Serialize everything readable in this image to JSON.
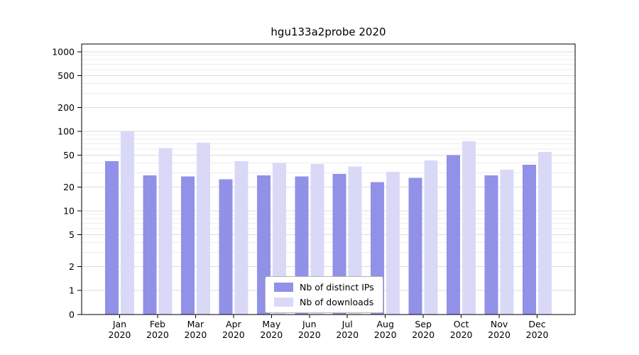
{
  "chart_data": {
    "type": "bar",
    "title": "hgu133a2probe 2020",
    "xlabel": "",
    "ylabel": "",
    "scale": "log-like with zero baseline",
    "grid": true,
    "legend_position": "bottom-center",
    "year_label": "2020",
    "categories": [
      "Jan",
      "Feb",
      "Mar",
      "Apr",
      "May",
      "Jun",
      "Jul",
      "Aug",
      "Sep",
      "Oct",
      "Nov",
      "Dec"
    ],
    "yticks": [
      0,
      1,
      2,
      5,
      10,
      20,
      50,
      100,
      200,
      500,
      1000
    ],
    "ylim": [
      0,
      1000
    ],
    "series": [
      {
        "name": "Nb of distinct IPs",
        "color": "#9191e8",
        "values": [
          42,
          28,
          27,
          25,
          28,
          27,
          29,
          23,
          26,
          50,
          28,
          38
        ]
      },
      {
        "name": "Nb of downloads",
        "color": "#d9d9f7",
        "values": [
          100,
          62,
          72,
          42,
          40,
          39,
          36,
          31,
          43,
          75,
          33,
          55
        ]
      }
    ]
  }
}
